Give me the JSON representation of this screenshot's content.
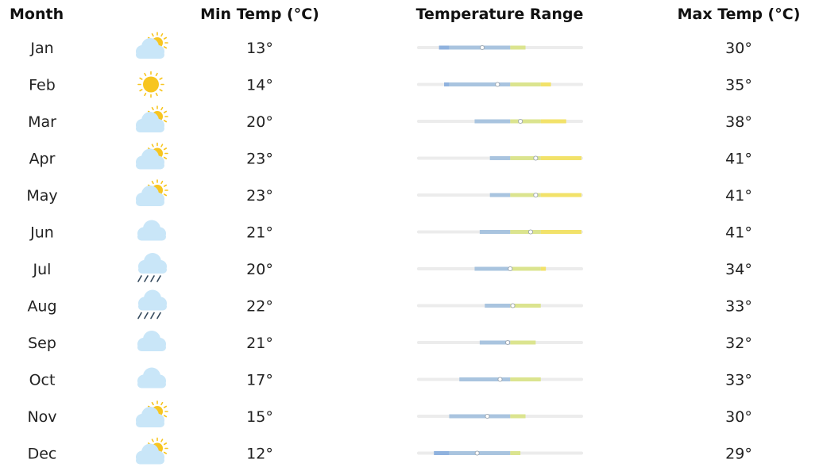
{
  "chart_data": {
    "type": "table",
    "headers": {
      "month": "Month",
      "min": "Min Temp (°C)",
      "range": "Temperature Range",
      "max": "Max Temp (°C)"
    },
    "range_scale": [
      9,
      41
    ],
    "colors": {
      "track": "#ececec",
      "cold": "#8fb2de",
      "cool": "#a9c4df",
      "mild": "#dbe48f",
      "warm": "#f2e26a",
      "sun": "#f7c520",
      "cloud": "#c9e6f8",
      "rain": "#33485c"
    },
    "rows": [
      {
        "month": "Jan",
        "icon": "partly-cloudy",
        "min": 13,
        "max": 30,
        "min_label": "13°",
        "max_label": "30°"
      },
      {
        "month": "Feb",
        "icon": "sunny",
        "min": 14,
        "max": 35,
        "min_label": "14°",
        "max_label": "35°"
      },
      {
        "month": "Mar",
        "icon": "partly-cloudy",
        "min": 20,
        "max": 38,
        "min_label": "20°",
        "max_label": "38°"
      },
      {
        "month": "Apr",
        "icon": "partly-cloudy",
        "min": 23,
        "max": 41,
        "min_label": "23°",
        "max_label": "41°"
      },
      {
        "month": "May",
        "icon": "partly-cloudy",
        "min": 23,
        "max": 41,
        "min_label": "23°",
        "max_label": "41°"
      },
      {
        "month": "Jun",
        "icon": "cloudy",
        "min": 21,
        "max": 41,
        "min_label": "21°",
        "max_label": "41°"
      },
      {
        "month": "Jul",
        "icon": "rainy",
        "min": 20,
        "max": 34,
        "min_label": "20°",
        "max_label": "34°"
      },
      {
        "month": "Aug",
        "icon": "rainy",
        "min": 22,
        "max": 33,
        "min_label": "22°",
        "max_label": "33°"
      },
      {
        "month": "Sep",
        "icon": "cloudy",
        "min": 21,
        "max": 32,
        "min_label": "21°",
        "max_label": "32°"
      },
      {
        "month": "Oct",
        "icon": "cloudy",
        "min": 17,
        "max": 33,
        "min_label": "17°",
        "max_label": "33°"
      },
      {
        "month": "Nov",
        "icon": "partly-cloudy",
        "min": 15,
        "max": 30,
        "min_label": "15°",
        "max_label": "30°"
      },
      {
        "month": "Dec",
        "icon": "partly-cloudy",
        "min": 12,
        "max": 29,
        "min_label": "12°",
        "max_label": "29°"
      }
    ]
  }
}
